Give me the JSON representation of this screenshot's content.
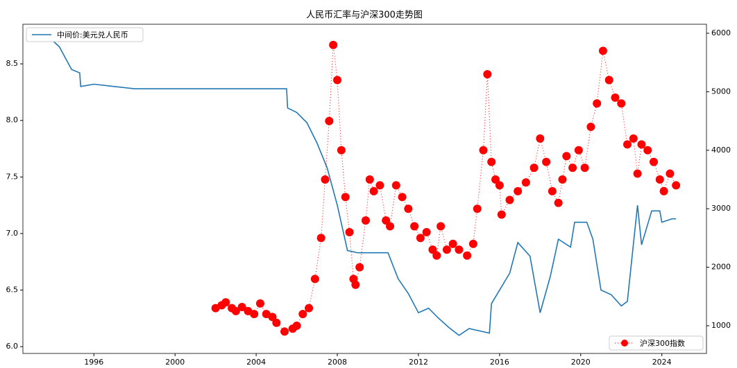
{
  "chart_data": {
    "type": "line",
    "title": "人民币汇率与沪深300走势图",
    "xlim": [
      1992.5,
      2026.2
    ],
    "xticks": [
      1996,
      2000,
      2004,
      2008,
      2012,
      2016,
      2020,
      2024
    ],
    "ylim": [
      5.94,
      8.85
    ],
    "yticks": [
      {
        "value": 6,
        "label": "6.0"
      },
      6.5,
      {
        "value": 7,
        "label": "7.0"
      },
      7.5,
      {
        "value": 8,
        "label": "8.0"
      },
      8.5
    ],
    "y2lim": [
      526,
      6154
    ],
    "y2ticks": [
      1000,
      2000,
      3000,
      4000,
      5000,
      6000
    ],
    "series": [
      {
        "name": "中间价:美元兑人民币",
        "color": "#1f77b4",
        "style": "line",
        "axis": "y",
        "legend_loc": "upper left",
        "x": [
          1993.6,
          1994.0,
          1994.3,
          1994.6,
          1994.9,
          1995.3,
          1995.35,
          1996.0,
          1997.0,
          1998.0,
          2005.5,
          2005.55,
          2006.0,
          2006.5,
          2007.0,
          2007.5,
          2008.0,
          2008.5,
          2009.0,
          2010.5,
          2011.0,
          2011.5,
          2012.0,
          2012.5,
          2013.0,
          2013.5,
          2014.0,
          2014.5,
          2015.5,
          2015.6,
          2016.0,
          2016.5,
          2016.9,
          2017.5,
          2018.0,
          2018.5,
          2018.9,
          2019.5,
          2019.7,
          2020.3,
          2020.6,
          2021.0,
          2021.5,
          2022.0,
          2022.3,
          2022.8,
          2023.0,
          2023.5,
          2023.9,
          2024.0,
          2024.5,
          2024.7
        ],
        "values": [
          8.7,
          8.7,
          8.65,
          8.55,
          8.45,
          8.42,
          8.3,
          8.32,
          8.3,
          8.28,
          8.28,
          8.11,
          8.07,
          7.98,
          7.8,
          7.58,
          7.25,
          6.85,
          6.83,
          6.83,
          6.6,
          6.47,
          6.3,
          6.34,
          6.25,
          6.17,
          6.1,
          6.16,
          6.12,
          6.38,
          6.5,
          6.65,
          6.92,
          6.8,
          6.3,
          6.62,
          6.95,
          6.88,
          7.1,
          7.1,
          6.95,
          6.5,
          6.46,
          6.36,
          6.4,
          7.25,
          6.9,
          7.2,
          7.2,
          7.1,
          7.13,
          7.13
        ]
      },
      {
        "name": "沪深300指数",
        "color": "#ff0000",
        "style": "dots",
        "axis": "y2",
        "legend_loc": "lower right",
        "x": [
          2002.0,
          2002.3,
          2002.5,
          2002.8,
          2003.0,
          2003.3,
          2003.6,
          2003.9,
          2004.2,
          2004.5,
          2004.8,
          2005.0,
          2005.4,
          2005.8,
          2006.0,
          2006.3,
          2006.6,
          2006.9,
          2007.2,
          2007.4,
          2007.6,
          2007.8,
          2008.0,
          2008.2,
          2008.4,
          2008.6,
          2008.8,
          2008.9,
          2009.1,
          2009.4,
          2009.6,
          2009.8,
          2010.1,
          2010.4,
          2010.6,
          2010.9,
          2011.2,
          2011.5,
          2011.8,
          2012.1,
          2012.4,
          2012.7,
          2012.9,
          2013.1,
          2013.4,
          2013.7,
          2014.0,
          2014.4,
          2014.7,
          2014.9,
          2015.2,
          2015.4,
          2015.6,
          2015.8,
          2016.0,
          2016.1,
          2016.5,
          2016.9,
          2017.3,
          2017.7,
          2018.0,
          2018.3,
          2018.6,
          2018.9,
          2019.1,
          2019.3,
          2019.6,
          2019.9,
          2020.2,
          2020.5,
          2020.8,
          2021.1,
          2021.4,
          2021.7,
          2022.0,
          2022.3,
          2022.6,
          2022.8,
          2023.0,
          2023.3,
          2023.6,
          2023.9,
          2024.1,
          2024.4,
          2024.7
        ],
        "values": [
          1300,
          1350,
          1400,
          1300,
          1250,
          1320,
          1250,
          1200,
          1380,
          1200,
          1150,
          1050,
          900,
          950,
          1000,
          1200,
          1300,
          1800,
          2500,
          3500,
          4500,
          5800,
          5200,
          4000,
          3200,
          2600,
          1800,
          1700,
          2000,
          2800,
          3500,
          3300,
          3400,
          2800,
          2700,
          3400,
          3200,
          3000,
          2700,
          2500,
          2600,
          2300,
          2200,
          2700,
          2300,
          2400,
          2300,
          2200,
          2400,
          3000,
          4000,
          5300,
          3800,
          3500,
          3400,
          2900,
          3150,
          3300,
          3450,
          3700,
          4200,
          3800,
          3300,
          3100,
          3500,
          3900,
          3700,
          4000,
          3700,
          4400,
          4800,
          5700,
          5200,
          4900,
          4800,
          4100,
          4200,
          3600,
          4100,
          4000,
          3800,
          3500,
          3300,
          3600,
          3400
        ]
      }
    ]
  }
}
